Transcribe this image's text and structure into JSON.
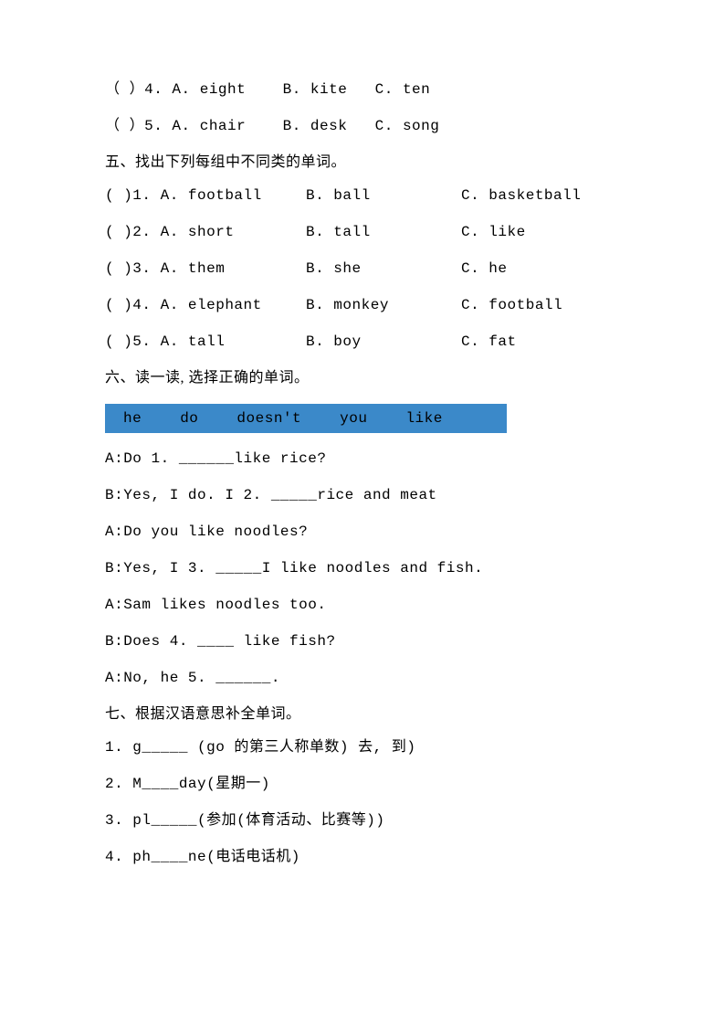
{
  "section4_items": [
    {
      "num": "4",
      "a": "A. eight",
      "b": "B. kite",
      "c": "C. ten"
    },
    {
      "num": "5",
      "a": "A. chair",
      "b": "B. desk",
      "c": "C. song"
    }
  ],
  "section5": {
    "title": "五、找出下列每组中不同类的单词。",
    "items": [
      {
        "num": "1",
        "a": "A. football",
        "b": "B. ball",
        "c": "C.  basketball"
      },
      {
        "num": "2",
        "a": "A. short",
        "b": "B. tall",
        "c": "C. like"
      },
      {
        "num": "3",
        "a": "A. them",
        "b": "B.  she",
        "c": "C. he"
      },
      {
        "num": "4",
        "a": "A. elephant",
        "b": "B. monkey",
        "c": "C. football"
      },
      {
        "num": "5",
        "a": "A. tall",
        "b": "B. boy",
        "c": "C. fat"
      }
    ]
  },
  "section6": {
    "title": "六、读一读, 选择正确的单词。",
    "word_bank": [
      "he",
      "do",
      "doesn't",
      "you",
      "like"
    ],
    "dialogue": [
      "A:Do  1. ______like rice?",
      "B:Yes, I do. I 2. _____rice and meat",
      "A:Do you like noodles?",
      "B:Yes, I 3. _____I like noodles and fish.",
      "A:Sam likes noodles too.",
      "B:Does 4. ____ like fish?",
      "A:No, he 5. ______."
    ]
  },
  "section7": {
    "title": "七、根据汉语意思补全单词。",
    "items": [
      "1. g_____  (go 的第三人称单数) 去, 到)",
      "2. M____day(星期一)",
      "3. pl_____(参加(体育活动、比赛等))",
      "4. ph____ne(电话电话机)"
    ]
  }
}
